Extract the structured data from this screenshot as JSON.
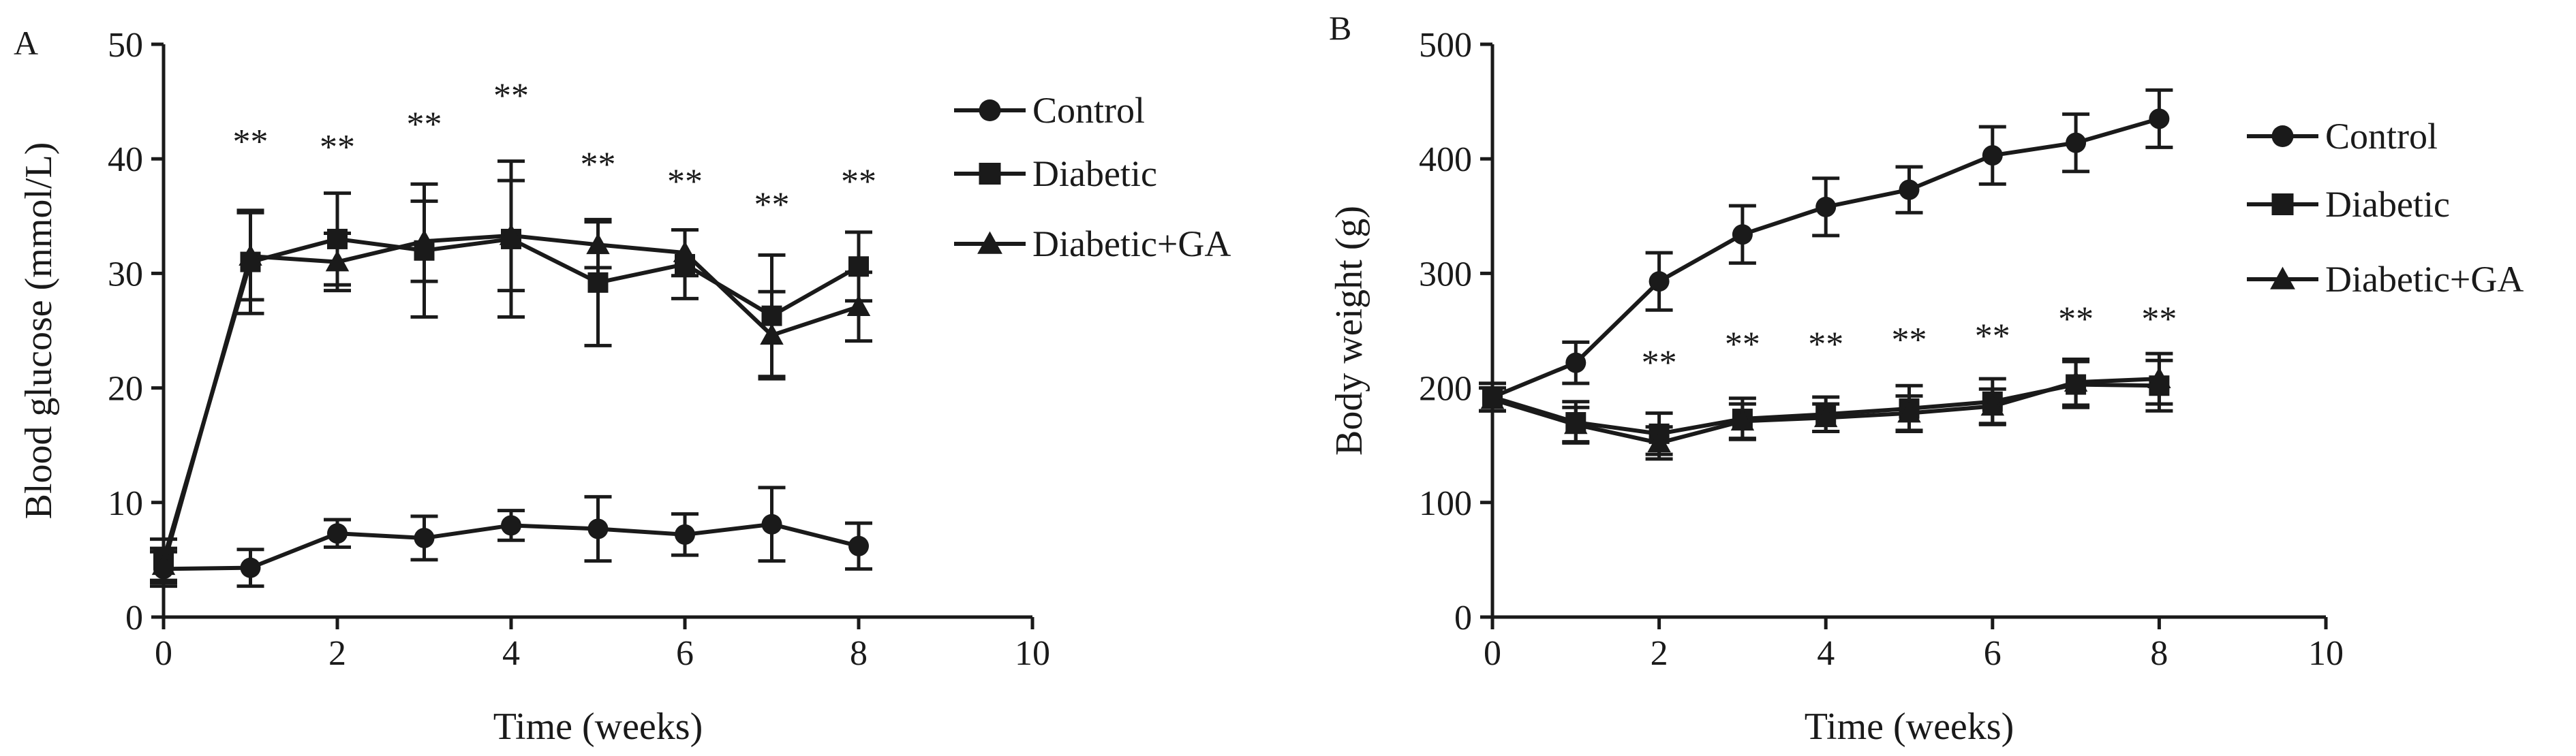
{
  "chart_data": [
    {
      "type": "line",
      "panel_label": "A",
      "title": "",
      "xlabel": "Time (weeks)",
      "ylabel": "Blood glucose (mmol/L)",
      "xlim": [
        0,
        10
      ],
      "ylim": [
        0,
        50
      ],
      "xticks": [
        0,
        2,
        4,
        6,
        8,
        10
      ],
      "yticks": [
        0,
        10,
        20,
        30,
        40,
        50
      ],
      "grid": false,
      "legend_position": "top-right",
      "series": [
        {
          "name": "Control",
          "marker": "circle",
          "x": [
            0,
            1,
            2,
            3,
            4,
            5,
            6,
            7,
            8
          ],
          "y": [
            4.2,
            4.3,
            7.3,
            6.9,
            8.0,
            7.7,
            7.2,
            8.1,
            6.2
          ],
          "err": [
            1.5,
            1.6,
            1.2,
            1.9,
            1.3,
            2.8,
            1.8,
            3.2,
            2.0
          ]
        },
        {
          "name": "Diabetic",
          "marker": "square",
          "x": [
            0,
            1,
            2,
            3,
            4,
            5,
            6,
            7,
            8
          ],
          "y": [
            5.0,
            31.0,
            33.0,
            32.0,
            33.0,
            29.2,
            30.8,
            26.3,
            30.6
          ],
          "err": [
            1.8,
            4.5,
            4.0,
            5.8,
            6.8,
            5.5,
            3.0,
            5.3,
            3.0
          ]
        },
        {
          "name": "Diabetic+GA",
          "marker": "triangle",
          "x": [
            0,
            1,
            2,
            3,
            4,
            5,
            6,
            7,
            8
          ],
          "y": [
            4.5,
            31.5,
            31.0,
            32.8,
            33.3,
            32.5,
            31.8,
            24.6,
            27.1
          ],
          "err": [
            1.5,
            3.8,
            2.5,
            3.5,
            4.8,
            2.0,
            2.0,
            3.8,
            3.0
          ]
        }
      ],
      "annotations": [
        {
          "x": 1,
          "y": 40.5,
          "text": "**"
        },
        {
          "x": 2,
          "y": 40.0,
          "text": "**"
        },
        {
          "x": 3,
          "y": 42.0,
          "text": "**"
        },
        {
          "x": 4,
          "y": 44.5,
          "text": "**"
        },
        {
          "x": 5,
          "y": 38.5,
          "text": "**"
        },
        {
          "x": 6,
          "y": 37.0,
          "text": "**"
        },
        {
          "x": 7,
          "y": 35.0,
          "text": "**"
        },
        {
          "x": 8,
          "y": 37.0,
          "text": "**"
        }
      ]
    },
    {
      "type": "line",
      "panel_label": "B",
      "title": "",
      "xlabel": "Time (weeks)",
      "ylabel": "Body weight (g)",
      "xlim": [
        0,
        10
      ],
      "ylim": [
        0,
        500
      ],
      "xticks": [
        0,
        2,
        4,
        6,
        8,
        10
      ],
      "yticks": [
        0,
        100,
        200,
        300,
        400,
        500
      ],
      "grid": false,
      "legend_position": "top-right",
      "series": [
        {
          "name": "Control",
          "marker": "circle",
          "x": [
            0,
            1,
            2,
            3,
            4,
            5,
            6,
            7,
            8
          ],
          "y": [
            192,
            222,
            293,
            334,
            358,
            373,
            403,
            414,
            435
          ],
          "err": [
            12,
            18,
            25,
            25,
            25,
            20,
            25,
            25,
            25
          ]
        },
        {
          "name": "Diabetic",
          "marker": "square",
          "x": [
            0,
            1,
            2,
            3,
            4,
            5,
            6,
            7,
            8
          ],
          "y": [
            192,
            170,
            160,
            173,
            177,
            182,
            188,
            203,
            202
          ],
          "err": [
            12,
            18,
            18,
            18,
            15,
            20,
            20,
            20,
            22
          ]
        },
        {
          "name": "Diabetic+GA",
          "marker": "triangle",
          "x": [
            0,
            1,
            2,
            3,
            4,
            5,
            6,
            7,
            8
          ],
          "y": [
            190,
            168,
            152,
            171,
            174,
            178,
            184,
            205,
            208
          ],
          "err": [
            10,
            15,
            14,
            15,
            12,
            15,
            15,
            20,
            22
          ]
        }
      ],
      "annotations": [
        {
          "x": 2,
          "y": 212,
          "text": "**"
        },
        {
          "x": 3,
          "y": 228,
          "text": "**"
        },
        {
          "x": 4,
          "y": 228,
          "text": "**"
        },
        {
          "x": 5,
          "y": 232,
          "text": "**"
        },
        {
          "x": 6,
          "y": 235,
          "text": "**"
        },
        {
          "x": 7,
          "y": 250,
          "text": "**"
        },
        {
          "x": 8,
          "y": 250,
          "text": "**"
        }
      ]
    }
  ]
}
